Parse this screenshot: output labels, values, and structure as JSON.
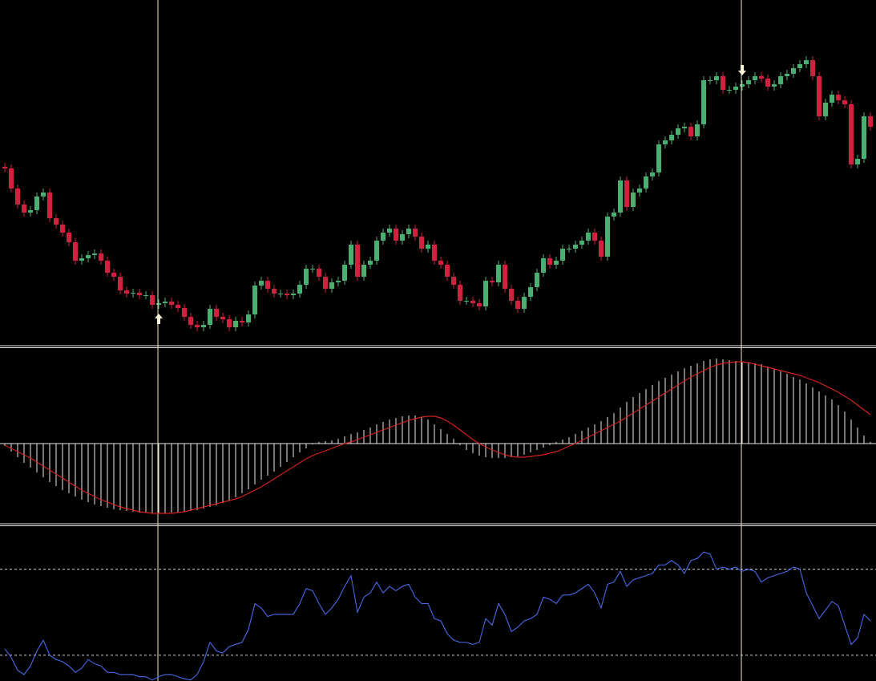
{
  "chart_data": [
    {
      "type": "candlestick",
      "up_color": "#4caf72",
      "down_color": "#d0213f",
      "ylim": [
        0,
        430
      ],
      "buy_arrows": [
        24
      ],
      "sell_arrows": [
        115
      ],
      "open": [
        222,
        220,
        195,
        175,
        165,
        168,
        185,
        190,
        158,
        150,
        140,
        128,
        105,
        108,
        112,
        114,
        105,
        90,
        85,
        68,
        64,
        65,
        62,
        62,
        50,
        52,
        54,
        50,
        46,
        35,
        25,
        22,
        25,
        45,
        35,
        32,
        22,
        30,
        28,
        38,
        74,
        80,
        70,
        64,
        64,
        62,
        64,
        75,
        95,
        95,
        85,
        70,
        78,
        80,
        100,
        125,
        85,
        100,
        105,
        130,
        140,
        145,
        130,
        138,
        145,
        135,
        120,
        125,
        105,
        100,
        85,
        75,
        55,
        55,
        52,
        48,
        80,
        78,
        100,
        70,
        55,
        45,
        60,
        72,
        90,
        108,
        100,
        105,
        120,
        120,
        125,
        130,
        140,
        130,
        110,
        160,
        165,
        205,
        172,
        190,
        195,
        210,
        215,
        250,
        255,
        262,
        270,
        272,
        260,
        275,
        330,
        330,
        335,
        318,
        318,
        322,
        325,
        330,
        335,
        332,
        322,
        325,
        335,
        338,
        345,
        350,
        355,
        335,
        285,
        302,
        312,
        305,
        300,
        225,
        232,
        285
      ],
      "high": [
        227,
        225,
        200,
        180,
        173,
        190,
        195,
        195,
        163,
        155,
        145,
        133,
        113,
        117,
        119,
        119,
        110,
        95,
        90,
        73,
        70,
        70,
        67,
        67,
        57,
        59,
        59,
        55,
        51,
        40,
        30,
        30,
        50,
        50,
        40,
        37,
        35,
        35,
        43,
        79,
        85,
        85,
        75,
        69,
        69,
        69,
        80,
        100,
        100,
        100,
        90,
        83,
        85,
        105,
        130,
        130,
        105,
        110,
        135,
        145,
        150,
        150,
        143,
        150,
        150,
        140,
        130,
        130,
        110,
        105,
        90,
        80,
        60,
        60,
        57,
        85,
        85,
        105,
        105,
        75,
        60,
        65,
        77,
        95,
        113,
        113,
        110,
        125,
        125,
        130,
        135,
        145,
        145,
        135,
        165,
        170,
        210,
        210,
        195,
        200,
        215,
        220,
        255,
        260,
        267,
        275,
        277,
        277,
        280,
        335,
        335,
        340,
        340,
        323,
        327,
        330,
        335,
        340,
        340,
        337,
        330,
        340,
        343,
        350,
        355,
        360,
        360,
        340,
        307,
        317,
        317,
        310,
        305,
        237,
        290,
        290
      ],
      "low": [
        215,
        190,
        170,
        160,
        160,
        163,
        180,
        153,
        145,
        135,
        123,
        100,
        100,
        103,
        107,
        100,
        85,
        80,
        63,
        59,
        59,
        57,
        57,
        45,
        45,
        47,
        45,
        41,
        30,
        20,
        17,
        17,
        20,
        30,
        27,
        17,
        17,
        23,
        23,
        33,
        69,
        65,
        59,
        59,
        57,
        57,
        59,
        70,
        90,
        80,
        65,
        65,
        73,
        75,
        95,
        80,
        80,
        95,
        100,
        125,
        135,
        125,
        125,
        133,
        130,
        115,
        115,
        100,
        95,
        80,
        70,
        50,
        50,
        47,
        43,
        43,
        73,
        73,
        65,
        50,
        40,
        40,
        55,
        67,
        85,
        95,
        95,
        100,
        115,
        115,
        120,
        125,
        125,
        105,
        105,
        155,
        160,
        167,
        167,
        185,
        190,
        205,
        210,
        245,
        250,
        257,
        265,
        255,
        255,
        270,
        325,
        325,
        313,
        313,
        313,
        317,
        320,
        325,
        327,
        317,
        317,
        320,
        330,
        333,
        340,
        345,
        330,
        280,
        280,
        297,
        300,
        295,
        220,
        220,
        227,
        267
      ],
      "close": [
        220,
        195,
        175,
        165,
        168,
        185,
        190,
        158,
        150,
        140,
        128,
        105,
        108,
        112,
        114,
        105,
        90,
        85,
        68,
        64,
        65,
        62,
        62,
        50,
        52,
        54,
        50,
        46,
        35,
        25,
        22,
        25,
        45,
        35,
        32,
        22,
        30,
        28,
        38,
        74,
        80,
        70,
        64,
        64,
        62,
        64,
        75,
        95,
        95,
        85,
        70,
        78,
        80,
        100,
        125,
        85,
        100,
        105,
        130,
        140,
        145,
        130,
        138,
        145,
        135,
        120,
        125,
        105,
        100,
        85,
        75,
        55,
        55,
        52,
        48,
        80,
        78,
        100,
        70,
        55,
        45,
        60,
        72,
        90,
        108,
        100,
        105,
        120,
        120,
        125,
        130,
        140,
        130,
        110,
        160,
        165,
        205,
        172,
        190,
        195,
        210,
        215,
        250,
        255,
        262,
        270,
        272,
        260,
        275,
        330,
        330,
        335,
        318,
        318,
        322,
        325,
        330,
        335,
        332,
        322,
        325,
        335,
        338,
        345,
        350,
        355,
        335,
        285,
        302,
        312,
        305,
        300,
        225,
        232,
        285,
        272
      ]
    },
    {
      "type": "macd",
      "histogram_color": "#e8e8e8",
      "signal_color": "#d42020",
      "ylim": [
        -100,
        120
      ],
      "histogram": [
        -3,
        -10,
        -17,
        -24,
        -30,
        -36,
        -42,
        -48,
        -53,
        -58,
        -62,
        -66,
        -70,
        -73,
        -76,
        -78,
        -80,
        -82,
        -83,
        -84,
        -85,
        -86,
        -86,
        -87,
        -87,
        -87,
        -86,
        -86,
        -85,
        -84,
        -83,
        -81,
        -79,
        -77,
        -74,
        -71,
        -67,
        -62,
        -57,
        -51,
        -45,
        -40,
        -35,
        -29,
        -23,
        -17,
        -11,
        -6,
        -1,
        2,
        3,
        4,
        6,
        9,
        12,
        14,
        17,
        20,
        24,
        27,
        30,
        32,
        34,
        35,
        35,
        33,
        30,
        24,
        18,
        12,
        6,
        -2,
        -8,
        -12,
        -15,
        -17,
        -18,
        -18,
        -18,
        -17,
        -16,
        -14,
        -11,
        -8,
        -5,
        -2,
        2,
        5,
        8,
        12,
        16,
        20,
        24,
        28,
        33,
        38,
        45,
        52,
        58,
        63,
        68,
        73,
        78,
        82,
        86,
        90,
        94,
        97,
        100,
        103,
        105,
        106,
        105,
        104,
        103,
        102,
        101,
        100,
        99,
        96,
        93,
        90,
        87,
        83,
        80,
        75,
        70,
        65,
        60,
        55,
        48,
        40,
        30,
        20,
        10,
        2
      ],
      "signal": [
        -2,
        -6,
        -10,
        -14,
        -18,
        -23,
        -28,
        -33,
        -38,
        -43,
        -48,
        -53,
        -58,
        -62,
        -66,
        -70,
        -73,
        -76,
        -79,
        -81,
        -83,
        -85,
        -86,
        -87,
        -87,
        -87,
        -87,
        -86,
        -85,
        -83,
        -81,
        -79,
        -77,
        -75,
        -73,
        -71,
        -69,
        -66,
        -62,
        -58,
        -54,
        -49,
        -44,
        -39,
        -34,
        -29,
        -24,
        -19,
        -15,
        -12,
        -9,
        -6,
        -3,
        0,
        2,
        5,
        8,
        11,
        14,
        17,
        20,
        23,
        26,
        29,
        31,
        33,
        34,
        34,
        32,
        28,
        23,
        17,
        11,
        5,
        0,
        -4,
        -8,
        -11,
        -14,
        -16,
        -17,
        -17,
        -16,
        -15,
        -14,
        -12,
        -10,
        -7,
        -3,
        0,
        4,
        8,
        12,
        16,
        20,
        24,
        28,
        33,
        38,
        43,
        48,
        53,
        58,
        63,
        68,
        73,
        78,
        83,
        87,
        91,
        95,
        98,
        100,
        101,
        102,
        102,
        101,
        99,
        97,
        95,
        93,
        91,
        89,
        87,
        85,
        82,
        79,
        76,
        72,
        68,
        64,
        59,
        54,
        48,
        42,
        36
      ]
    },
    {
      "type": "line",
      "color": "#4a68e8",
      "level_color": "#cfcfcf",
      "ylim": [
        18,
        90
      ],
      "levels": [
        30,
        70
      ],
      "values": [
        33,
        29,
        23,
        21,
        25,
        32,
        37,
        30,
        28,
        27,
        25,
        22,
        24,
        28,
        26,
        25,
        22,
        22,
        21,
        21,
        21,
        20,
        20,
        18.4,
        20,
        21,
        21,
        20,
        19,
        18.5,
        21,
        27,
        36,
        32,
        31,
        34,
        35,
        36,
        42,
        54,
        52,
        48,
        49,
        49,
        49,
        49,
        54,
        61,
        60,
        54,
        49,
        52,
        56,
        62,
        67,
        50,
        57,
        59,
        64,
        59,
        62,
        60,
        62,
        63,
        57,
        54,
        54,
        47,
        46,
        40,
        37,
        36,
        36,
        35,
        36,
        47,
        44,
        54,
        49,
        41,
        43,
        46,
        47,
        49,
        57,
        56,
        54,
        58,
        58,
        59,
        61,
        63,
        59,
        52,
        63,
        64,
        69,
        62,
        65,
        66,
        67,
        68,
        72,
        72,
        74,
        72,
        68,
        74,
        75,
        78,
        77,
        70,
        71,
        70,
        71,
        69,
        70,
        69,
        64,
        66,
        67,
        68,
        69,
        71,
        70,
        59,
        53,
        47,
        51,
        55,
        53,
        44,
        35,
        38,
        49,
        46
      ]
    }
  ]
}
